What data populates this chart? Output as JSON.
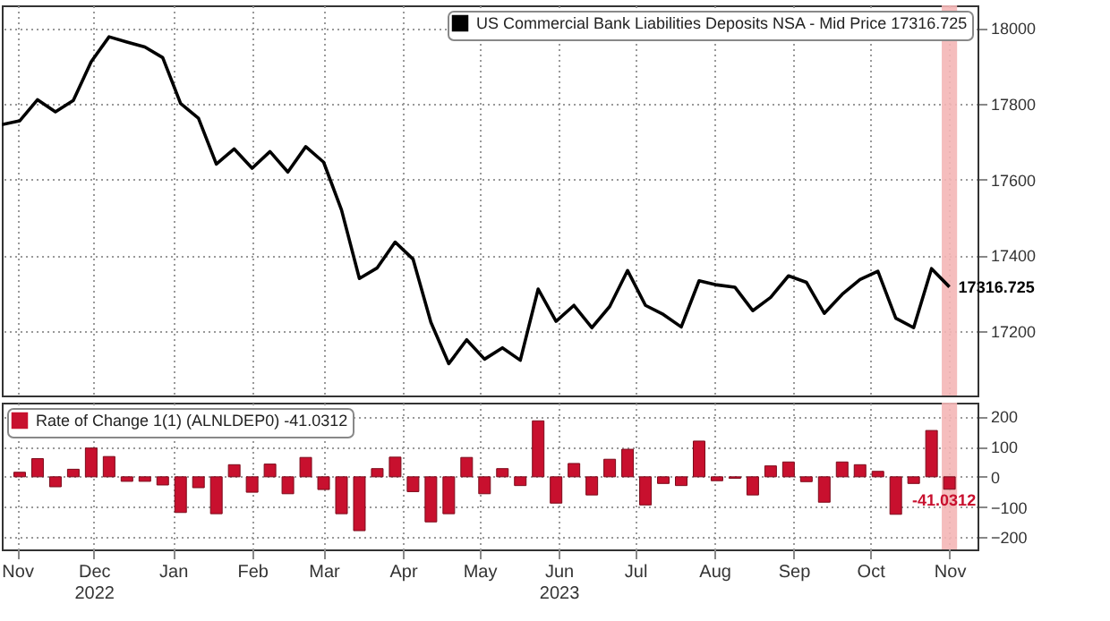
{
  "chart_data": [
    {
      "type": "line",
      "x": [
        "2022-10-26",
        "2022-11-02",
        "2022-11-09",
        "2022-11-16",
        "2022-11-23",
        "2022-11-30",
        "2022-12-07",
        "2022-12-14",
        "2022-12-21",
        "2022-12-28",
        "2023-01-04",
        "2023-01-11",
        "2023-01-18",
        "2023-01-25",
        "2023-02-01",
        "2023-02-08",
        "2023-02-15",
        "2023-02-22",
        "2023-03-01",
        "2023-03-08",
        "2023-03-15",
        "2023-03-22",
        "2023-03-29",
        "2023-04-05",
        "2023-04-12",
        "2023-04-19",
        "2023-04-26",
        "2023-05-03",
        "2023-05-10",
        "2023-05-17",
        "2023-05-24",
        "2023-05-31",
        "2023-06-07",
        "2023-06-14",
        "2023-06-21",
        "2023-06-28",
        "2023-07-05",
        "2023-07-12",
        "2023-07-19",
        "2023-07-26",
        "2023-08-02",
        "2023-08-09",
        "2023-08-16",
        "2023-08-23",
        "2023-08-30",
        "2023-09-06",
        "2023-09-13",
        "2023-09-20",
        "2023-09-27",
        "2023-10-04",
        "2023-10-11",
        "2023-10-18",
        "2023-10-25",
        "2023-11-01"
      ],
      "series": [
        {
          "name": "US Commercial Bank Liabilities Deposits NSA - Mid Price 17316.725",
          "color": "#000000",
          "values": [
            17745,
            17755,
            17811,
            17779,
            17809,
            17911,
            17977,
            17963,
            17950,
            17922,
            17801,
            17762,
            17641,
            17681,
            17630,
            17674,
            17620,
            17687,
            17646,
            17520,
            17339,
            17367,
            17435,
            17390,
            17223,
            17114,
            17177,
            17126,
            17156,
            17123,
            17311,
            17226,
            17268,
            17209,
            17265,
            17360,
            17268,
            17244,
            17211,
            17333,
            17322,
            17316,
            17254,
            17289,
            17346,
            17329,
            17247,
            17297,
            17336,
            17358,
            17234,
            17209,
            17365,
            17316.725
          ],
          "value_labels": [
            null,
            null,
            null,
            null,
            null,
            null,
            null,
            null,
            null,
            null,
            null,
            null,
            null,
            null,
            null,
            null,
            null,
            null,
            null,
            null,
            null,
            null,
            null,
            null,
            null,
            null,
            null,
            null,
            null,
            null,
            null,
            null,
            null,
            null,
            null,
            null,
            null,
            null,
            null,
            null,
            null,
            null,
            null,
            null,
            null,
            null,
            null,
            null,
            null,
            null,
            null,
            null,
            null,
            "17316.725"
          ]
        }
      ],
      "xlim": [
        "2022-10-26",
        "2023-11-12"
      ],
      "xticks": [
        {
          "value": "2022-11-01",
          "label": null
        },
        {
          "value": "2022-12-01",
          "label": null
        },
        {
          "value": "2023-01-01",
          "label": null
        },
        {
          "value": "2023-02-01",
          "label": null
        },
        {
          "value": "2023-03-01",
          "label": null
        },
        {
          "value": "2023-04-01",
          "label": null
        },
        {
          "value": "2023-05-01",
          "label": null
        },
        {
          "value": "2023-06-01",
          "label": null
        },
        {
          "value": "2023-07-01",
          "label": null
        },
        {
          "value": "2023-08-01",
          "label": null
        },
        {
          "value": "2023-09-01",
          "label": null
        },
        {
          "value": "2023-10-01",
          "label": null
        },
        {
          "value": "2023-11-01",
          "label": null
        }
      ],
      "ylim": [
        17030,
        18060
      ],
      "yticks": [
        17200,
        17400,
        17600,
        17800,
        18000
      ],
      "grid": true,
      "legend": "top right",
      "tick_labels": "y",
      "bands": [
        {
          "axis": "x",
          "from": "2023-10-29",
          "to": "2023-11-04",
          "color": "#f4b6b6"
        }
      ]
    },
    {
      "type": "bar",
      "x": [
        "2022-11-02",
        "2022-11-09",
        "2022-11-16",
        "2022-11-23",
        "2022-11-30",
        "2022-12-07",
        "2022-12-14",
        "2022-12-21",
        "2022-12-28",
        "2023-01-04",
        "2023-01-11",
        "2023-01-18",
        "2023-01-25",
        "2023-02-01",
        "2023-02-08",
        "2023-02-15",
        "2023-02-22",
        "2023-03-01",
        "2023-03-08",
        "2023-03-15",
        "2023-03-22",
        "2023-03-29",
        "2023-04-05",
        "2023-04-12",
        "2023-04-19",
        "2023-04-26",
        "2023-05-03",
        "2023-05-10",
        "2023-05-17",
        "2023-05-24",
        "2023-05-31",
        "2023-06-07",
        "2023-06-14",
        "2023-06-21",
        "2023-06-28",
        "2023-07-05",
        "2023-07-12",
        "2023-07-19",
        "2023-07-26",
        "2023-08-02",
        "2023-08-09",
        "2023-08-16",
        "2023-08-23",
        "2023-08-30",
        "2023-09-06",
        "2023-09-13",
        "2023-09-20",
        "2023-09-27",
        "2023-10-04",
        "2023-10-11",
        "2023-10-18",
        "2023-10-25",
        "2023-11-01"
      ],
      "series": [
        {
          "name": "Rate of Change 1(1) (ALNLDEP0) -41.0312",
          "color": "#c8102e",
          "values": [
            15,
            60,
            -33,
            25,
            95,
            67,
            -15,
            -15,
            -27,
            -118,
            -36,
            -122,
            40,
            -51,
            42,
            -56,
            64,
            -42,
            -122,
            -178,
            27,
            65,
            -49,
            -149,
            -122,
            64,
            -56,
            27,
            -29,
            185,
            -87,
            44,
            -60,
            58,
            91,
            -93,
            -22,
            -29,
            118,
            -13,
            -5,
            -60,
            36,
            49,
            -16,
            -84,
            49,
            40,
            18,
            -124,
            -22,
            153,
            -41.0312
          ],
          "value_labels": [
            null,
            null,
            null,
            null,
            null,
            null,
            null,
            null,
            null,
            null,
            null,
            null,
            null,
            null,
            null,
            null,
            null,
            null,
            null,
            null,
            null,
            null,
            null,
            null,
            null,
            null,
            null,
            null,
            null,
            null,
            null,
            null,
            null,
            null,
            null,
            null,
            null,
            null,
            null,
            null,
            null,
            null,
            null,
            null,
            null,
            null,
            null,
            null,
            null,
            null,
            null,
            null,
            "-41.0312"
          ]
        }
      ],
      "xlim": [
        "2022-10-26",
        "2023-11-12"
      ],
      "xticks": [
        {
          "value": "2022-11-01",
          "label": "Nov"
        },
        {
          "value": "2022-12-01",
          "label": "Dec\n2022"
        },
        {
          "value": "2023-01-01",
          "label": "Jan"
        },
        {
          "value": "2023-02-01",
          "label": "Feb"
        },
        {
          "value": "2023-03-01",
          "label": "Mar"
        },
        {
          "value": "2023-04-01",
          "label": "Apr"
        },
        {
          "value": "2023-05-01",
          "label": "May"
        },
        {
          "value": "2023-06-01",
          "label": "Jun\n2023"
        },
        {
          "value": "2023-07-01",
          "label": "Jul"
        },
        {
          "value": "2023-08-01",
          "label": "Aug"
        },
        {
          "value": "2023-09-01",
          "label": "Sep"
        },
        {
          "value": "2023-10-01",
          "label": "Oct"
        },
        {
          "value": "2023-11-01",
          "label": "Nov"
        }
      ],
      "ylim": [
        -240,
        245
      ],
      "yticks": [
        -200,
        -100,
        0,
        100,
        200
      ],
      "grid": true,
      "legend": "top left",
      "bands": [
        {
          "axis": "x",
          "from": "2023-10-29",
          "to": "2023-11-04",
          "color": "#f4b6b6"
        }
      ]
    }
  ]
}
